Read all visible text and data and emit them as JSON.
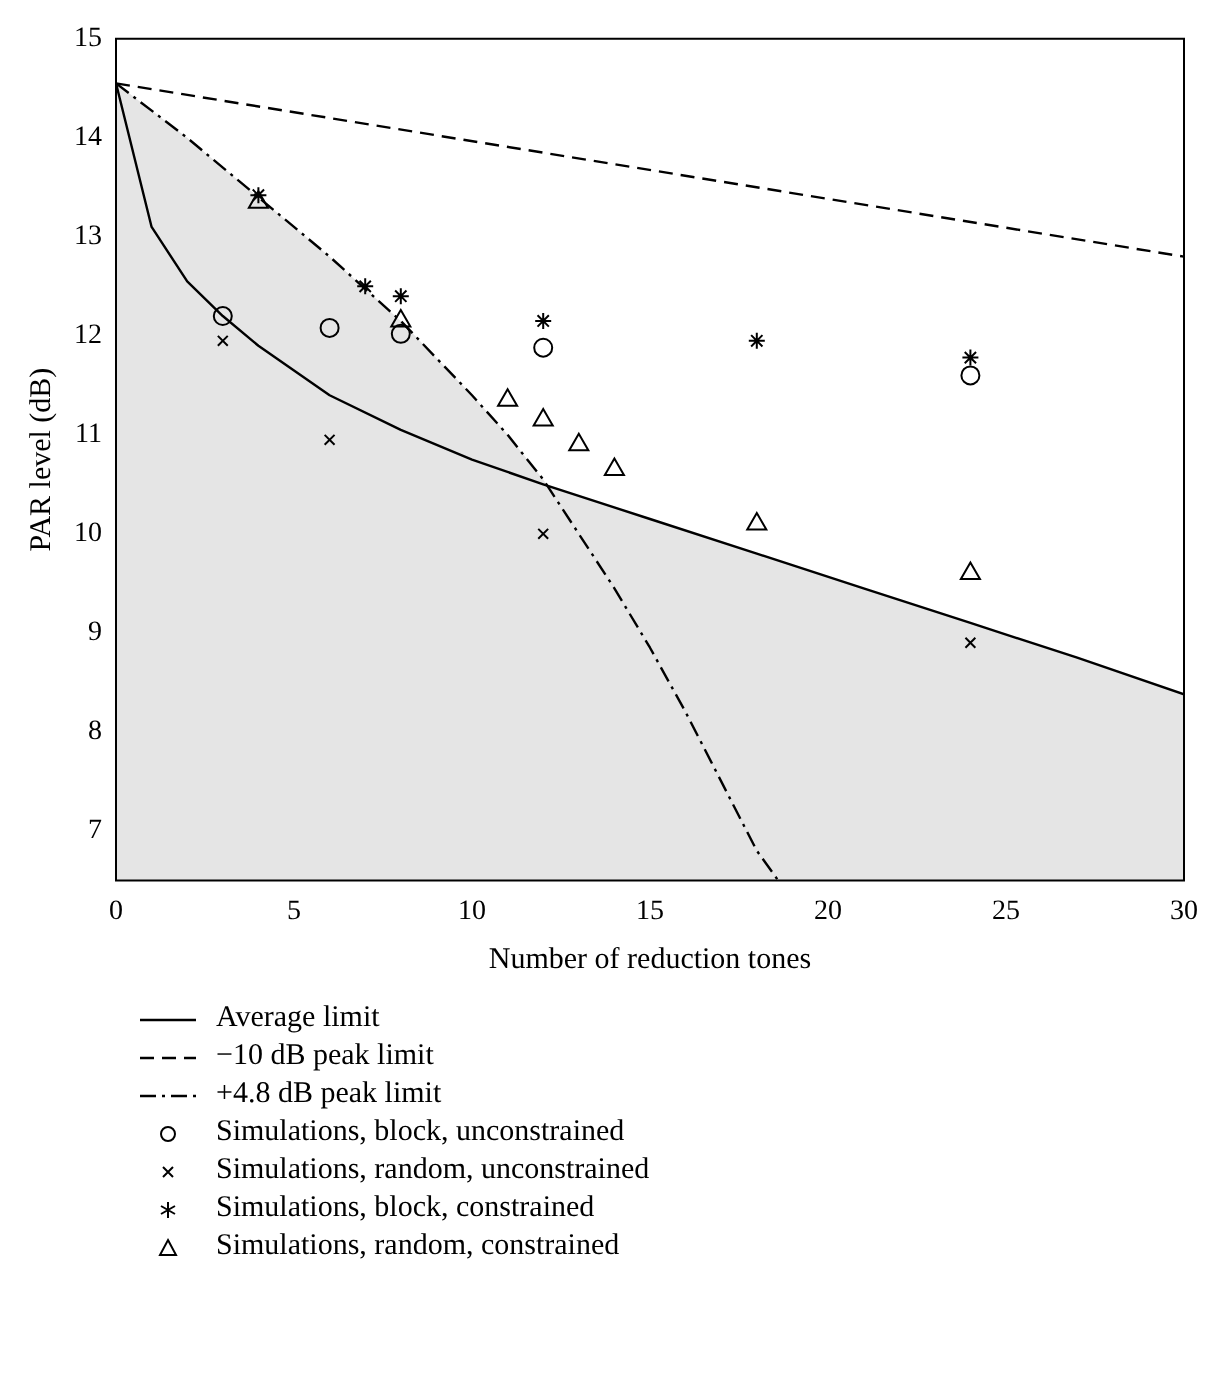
{
  "chart_data": {
    "type": "line",
    "xlabel": "Number of reduction tones",
    "ylabel": "PAR level (dB)",
    "xlim": [
      0,
      30
    ],
    "xticks": [
      0,
      5,
      10,
      15,
      20,
      25,
      30
    ],
    "ylim": [
      6.5,
      15
    ],
    "yticks": [
      7,
      8,
      9,
      10,
      11,
      12,
      13,
      14,
      15
    ],
    "grid": false,
    "legend": "bottom",
    "series": [
      {
        "name": "Average limit",
        "type": "area",
        "color": "#000000",
        "line_style": "solid",
        "marker": "none",
        "x": [
          0,
          1,
          2,
          3,
          4,
          6,
          8,
          10,
          12,
          15,
          18,
          21,
          24,
          27,
          30
        ],
        "values": [
          14.55,
          13.1,
          12.55,
          12.2,
          11.9,
          11.4,
          11.05,
          10.75,
          10.5,
          10.15,
          9.8,
          9.45,
          9.1,
          8.75,
          8.38
        ]
      },
      {
        "name": "−10 dB peak limit",
        "type": "line",
        "color": "#000000",
        "line_style": "dashed",
        "marker": "none",
        "x": [
          0,
          30
        ],
        "values": [
          14.55,
          12.8
        ]
      },
      {
        "name": "+4.8 dB peak limit",
        "type": "area",
        "color": "#000000",
        "line_style": "dashdot",
        "marker": "none",
        "x": [
          0,
          2,
          4,
          6,
          8,
          10,
          11,
          12,
          13,
          14,
          15,
          16,
          17,
          18,
          18.6
        ],
        "values": [
          14.55,
          14.0,
          13.4,
          12.8,
          12.15,
          11.4,
          11.0,
          10.55,
          10.0,
          9.45,
          8.85,
          8.2,
          7.5,
          6.8,
          6.5
        ]
      },
      {
        "name": "Simulations, block, unconstrained",
        "type": "scatter",
        "color": "#000000",
        "marker": "circle",
        "x": [
          3,
          6,
          8,
          12,
          24
        ],
        "values": [
          12.2,
          12.08,
          12.02,
          11.88,
          11.6
        ]
      },
      {
        "name": "Simulations, random, unconstrained",
        "type": "scatter",
        "color": "#000000",
        "marker": "cross",
        "x": [
          3,
          6,
          12,
          24
        ],
        "values": [
          11.95,
          10.95,
          10.0,
          8.9
        ]
      },
      {
        "name": "Simulations, block, constrained",
        "type": "scatter",
        "color": "#000000",
        "marker": "cross",
        "x": [
          4,
          7,
          8,
          12,
          18,
          24
        ],
        "values": [
          13.42,
          12.5,
          12.4,
          12.15,
          11.95,
          11.78
        ]
      },
      {
        "name": "Simulations, random, constrained",
        "type": "scatter",
        "color": "#000000",
        "marker": "triangle",
        "x": [
          4,
          8,
          11,
          12,
          13,
          14,
          18,
          24
        ],
        "values": [
          13.35,
          12.15,
          11.35,
          11.15,
          10.9,
          10.65,
          10.1,
          9.6
        ]
      }
    ]
  }
}
